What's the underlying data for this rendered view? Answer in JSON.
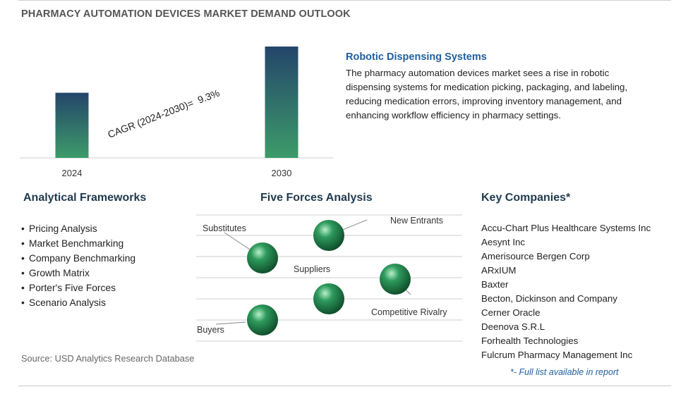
{
  "title": "PHARMACY AUTOMATION DEVICES MARKET DEMAND OUTLOOK",
  "chart_data": {
    "type": "bar",
    "categories": [
      "2024",
      "2030"
    ],
    "values": [
      1.0,
      1.71
    ],
    "annotation": "CAGR (2024-2030)=  9.3%",
    "colors": {
      "bar_top": "#24456a",
      "bar_bottom": "#3d9b6a"
    }
  },
  "feature": {
    "title": "Robotic Dispensing Systems",
    "text": "The pharmacy automation devices market sees a rise in robotic dispensing systems for medication picking, packaging, and labeling, reducing medication errors, improving inventory management, and enhancing workflow efficiency in pharmacy settings."
  },
  "frameworks": {
    "title": "Analytical Frameworks",
    "items": [
      "Pricing Analysis",
      "Market Benchmarking",
      "Company Benchmarking",
      "Growth Matrix",
      "Porter's Five Forces",
      "Scenario Analysis"
    ]
  },
  "five_forces": {
    "title": "Five Forces Analysis",
    "labels": {
      "substitutes": "Substitutes",
      "new_entrants": "New Entrants",
      "suppliers": "Suppliers",
      "competitive_rivalry": "Competitive Rivalry",
      "buyers": "Buyers"
    },
    "sphere_color": "#2e9a5c"
  },
  "companies": {
    "title": "Key Companies*",
    "items": [
      "Accu-Chart Plus Healthcare Systems Inc",
      "Aesynt Inc",
      "Amerisource Bergen Corp",
      "ARxIUM",
      "Baxter",
      "Becton, Dickinson and Company",
      "Cerner Oracle",
      "Deenova S.R.L",
      "Forhealth Technologies",
      "Fulcrum Pharmacy Management Inc"
    ],
    "note": "*- Full list available in report"
  },
  "source": "Source: USD Analytics Research Database"
}
